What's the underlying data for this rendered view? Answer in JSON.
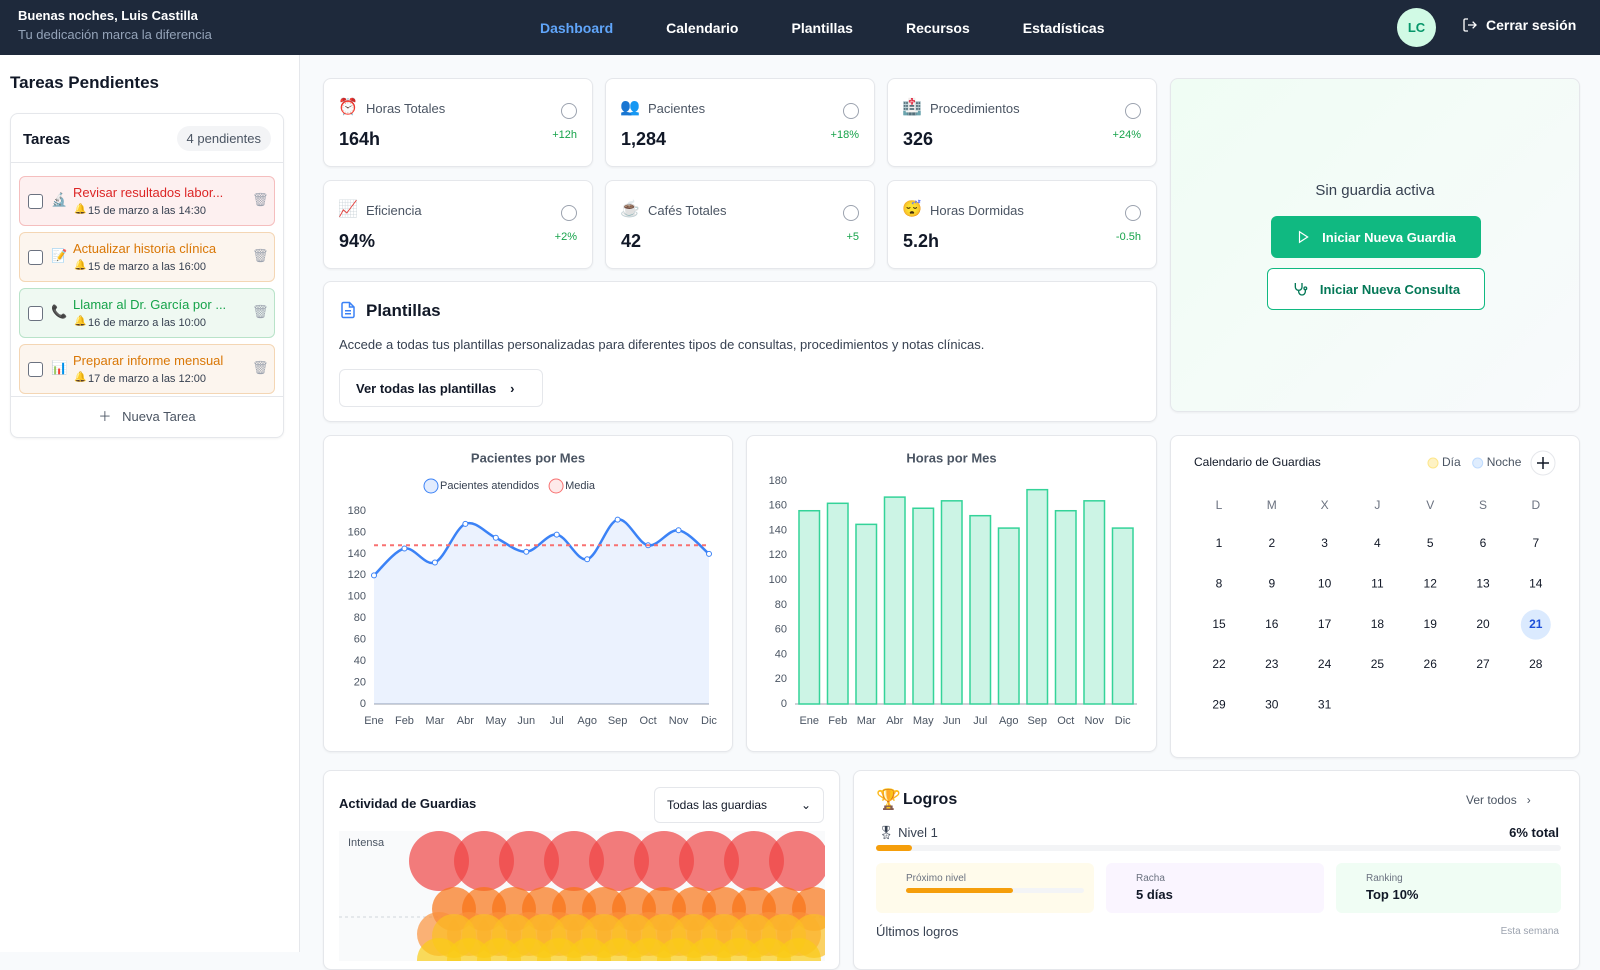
{
  "header": {
    "greeting": "Buenas noches, Luis Castilla",
    "subtitle": "Tu dedicación marca la diferencia",
    "nav": [
      "Dashboard",
      "Calendario",
      "Plantillas",
      "Recursos",
      "Estadísticas"
    ],
    "active_nav": 0,
    "avatar": "LC",
    "logout": "Cerrar sesión"
  },
  "sidebar": {
    "title": "Tareas Pendientes",
    "card_title": "Tareas",
    "count": "4 pendientes",
    "new_task": "Nueva Tarea",
    "tasks": [
      {
        "icon": "🔬",
        "title": "Revisar resultados labor...",
        "time": "15 de marzo a las 14:30",
        "color": "#dc2626"
      },
      {
        "icon": "📝",
        "title": "Actualizar historia clínica",
        "time": "15 de marzo a las 16:00",
        "color": "#d97706"
      },
      {
        "icon": "📞",
        "title": "Llamar al Dr. García por ...",
        "time": "16 de marzo a las 10:00",
        "color": "#16a34a"
      },
      {
        "icon": "📊",
        "title": "Preparar informe mensual",
        "time": "17 de marzo a las 12:00",
        "color": "#d97706"
      }
    ]
  },
  "stats": [
    {
      "icon": "⏰",
      "label": "Horas Totales",
      "value": "164h",
      "change": "+12h"
    },
    {
      "icon": "👥",
      "label": "Pacientes",
      "value": "1,284",
      "change": "+18%"
    },
    {
      "icon": "🏥",
      "label": "Procedimientos",
      "value": "326",
      "change": "+24%"
    },
    {
      "icon": "📈",
      "label": "Eficiencia",
      "value": "94%",
      "change": "+2%"
    },
    {
      "icon": "☕",
      "label": "Cafés Totales",
      "value": "42",
      "change": "+5"
    },
    {
      "icon": "😴",
      "label": "Horas Dormidas",
      "value": "5.2h",
      "change": "-0.5h"
    }
  ],
  "guard": {
    "status": "Sin guardia activa",
    "start": "Iniciar Nueva Guardia",
    "consult": "Iniciar Nueva Consulta"
  },
  "templates": {
    "title": "Plantillas",
    "description": "Accede a todas tus plantillas personalizadas para diferentes tipos de consultas, procedimientos y notas clínicas.",
    "button": "Ver todas las plantillas"
  },
  "chart_data": [
    {
      "type": "line",
      "title": "Pacientes por Mes",
      "categories": [
        "Ene",
        "Feb",
        "Mar",
        "Abr",
        "May",
        "Jun",
        "Jul",
        "Ago",
        "Sep",
        "Oct",
        "Nov",
        "Dic"
      ],
      "series": [
        {
          "name": "Pacientes atendidos",
          "color": "#3b82f6",
          "values": [
            120,
            145,
            132,
            168,
            155,
            142,
            158,
            135,
            172,
            148,
            162,
            140
          ]
        },
        {
          "name": "Media",
          "color": "#f87171",
          "values": [
            148,
            148,
            148,
            148,
            148,
            148,
            148,
            148,
            148,
            148,
            148,
            148
          ]
        }
      ],
      "ylim": [
        0,
        180
      ],
      "yticks": [
        0,
        20,
        40,
        60,
        80,
        100,
        120,
        140,
        160,
        180
      ],
      "grid": false
    },
    {
      "type": "bar",
      "title": "Horas por Mes",
      "categories": [
        "Ene",
        "Feb",
        "Mar",
        "Abr",
        "May",
        "Jun",
        "Jul",
        "Ago",
        "Sep",
        "Oct",
        "Nov",
        "Dic"
      ],
      "values": [
        156,
        162,
        145,
        167,
        158,
        164,
        152,
        142,
        173,
        156,
        164,
        142
      ],
      "color": "#34d399",
      "ylim": [
        0,
        180
      ],
      "yticks": [
        0,
        20,
        40,
        60,
        80,
        100,
        120,
        140,
        160,
        180
      ],
      "grid": false
    }
  ],
  "calendar": {
    "title": "Calendario de Guardias",
    "legend": [
      "Día",
      "Noche"
    ],
    "weekdays": [
      "L",
      "M",
      "X",
      "J",
      "V",
      "S",
      "D"
    ],
    "days": [
      1,
      2,
      3,
      4,
      5,
      6,
      7,
      8,
      9,
      10,
      11,
      12,
      13,
      14,
      15,
      16,
      17,
      18,
      19,
      20,
      21,
      22,
      23,
      24,
      25,
      26,
      27,
      28,
      29,
      30,
      31
    ],
    "today": 21
  },
  "activity": {
    "title": "Actividad de Guardias",
    "filter": "Todas las guardias",
    "level": "Intensa"
  },
  "achievements": {
    "title": "Logros",
    "see_all": "Ver todos",
    "level": "Nivel 1",
    "progress": {
      "value": 6,
      "label": "6% total"
    },
    "next_level": {
      "label": "Próximo nivel",
      "progress": 60
    },
    "streak": {
      "label": "Racha",
      "value": "5 días"
    },
    "ranking": {
      "label": "Ranking",
      "value": "Top 10%"
    },
    "recent": "Últimos logros",
    "period": "Esta semana"
  }
}
